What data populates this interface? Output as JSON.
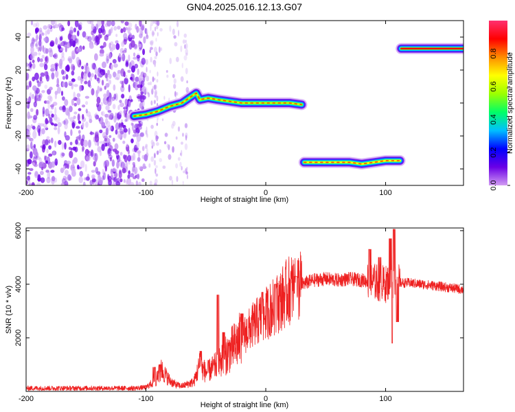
{
  "title": "GN04.2025.016.12.13.G07",
  "chart_data": [
    {
      "type": "heatmap",
      "xlabel": "Height of straight line (km)",
      "ylabel": "Frequency (Hz)",
      "xlim": [
        -200,
        165
      ],
      "ylim": [
        -50,
        50
      ],
      "xticks": [
        -200,
        -100,
        0,
        100
      ],
      "yticks": [
        -40,
        -20,
        0,
        20,
        40
      ],
      "colorbar": {
        "label": "Normalized spectral amplitude",
        "range": [
          0,
          1
        ],
        "ticks": [
          "0.0",
          "0.2",
          "0.4",
          "0.6",
          "0.8"
        ],
        "colormap": [
          "#d29cf2",
          "#6a00e6",
          "#0000ff",
          "#00bfff",
          "#00ff66",
          "#9cff00",
          "#ffff00",
          "#ff8c00",
          "#ff0000",
          "#ff3070"
        ]
      },
      "noise_region": {
        "x_start": -200,
        "x_end": -100,
        "x_faint_end": -65
      },
      "traces": [
        {
          "points": [
            {
              "x": -110,
              "y": -8
            },
            {
              "x": -100,
              "y": -7
            },
            {
              "x": -90,
              "y": -5
            },
            {
              "x": -80,
              "y": -2
            },
            {
              "x": -70,
              "y": 0
            },
            {
              "x": -62,
              "y": 4
            },
            {
              "x": -58,
              "y": 6
            },
            {
              "x": -55,
              "y": 2
            },
            {
              "x": -48,
              "y": 3
            },
            {
              "x": -40,
              "y": 2
            },
            {
              "x": -30,
              "y": 1
            },
            {
              "x": -20,
              "y": 0
            },
            {
              "x": -10,
              "y": 0
            },
            {
              "x": 0,
              "y": 0
            },
            {
              "x": 10,
              "y": 0
            },
            {
              "x": 20,
              "y": 0
            },
            {
              "x": 30,
              "y": -1
            }
          ]
        },
        {
          "points": [
            {
              "x": 32,
              "y": -36
            },
            {
              "x": 50,
              "y": -36
            },
            {
              "x": 70,
              "y": -36
            },
            {
              "x": 80,
              "y": -37
            },
            {
              "x": 90,
              "y": -36
            },
            {
              "x": 100,
              "y": -35
            },
            {
              "x": 112,
              "y": -35
            }
          ]
        },
        {
          "points": [
            {
              "x": 113,
              "y": 33
            },
            {
              "x": 130,
              "y": 33
            },
            {
              "x": 150,
              "y": 33
            },
            {
              "x": 165,
              "y": 33
            }
          ]
        }
      ]
    },
    {
      "type": "line",
      "xlabel": "Height of straight line (km)",
      "ylabel": "SNR (10 * v/v)",
      "xlim": [
        -200,
        165
      ],
      "ylim": [
        0,
        6100
      ],
      "xticks": [
        -200,
        -100,
        0,
        100
      ],
      "yticks": [
        2000,
        4000,
        6000
      ],
      "color": "#ee2020",
      "envelope": [
        {
          "x": -200,
          "y": 120
        },
        {
          "x": -150,
          "y": 120
        },
        {
          "x": -110,
          "y": 120
        },
        {
          "x": -100,
          "y": 150
        },
        {
          "x": -92,
          "y": 400
        },
        {
          "x": -87,
          "y": 800
        },
        {
          "x": -80,
          "y": 400
        },
        {
          "x": -75,
          "y": 250
        },
        {
          "x": -70,
          "y": 200
        },
        {
          "x": -60,
          "y": 350
        },
        {
          "x": -55,
          "y": 1000
        },
        {
          "x": -50,
          "y": 700
        },
        {
          "x": -40,
          "y": 1000
        },
        {
          "x": -30,
          "y": 1500
        },
        {
          "x": -20,
          "y": 2000
        },
        {
          "x": -10,
          "y": 2500
        },
        {
          "x": 0,
          "y": 2900
        },
        {
          "x": 10,
          "y": 3300
        },
        {
          "x": 20,
          "y": 3800
        },
        {
          "x": 30,
          "y": 4000
        },
        {
          "x": 40,
          "y": 4150
        },
        {
          "x": 50,
          "y": 4200
        },
        {
          "x": 60,
          "y": 4150
        },
        {
          "x": 70,
          "y": 4200
        },
        {
          "x": 80,
          "y": 4150
        },
        {
          "x": 90,
          "y": 4100
        },
        {
          "x": 100,
          "y": 4000
        },
        {
          "x": 105,
          "y": 4200
        },
        {
          "x": 110,
          "y": 4050
        },
        {
          "x": 120,
          "y": 4050
        },
        {
          "x": 140,
          "y": 3950
        },
        {
          "x": 165,
          "y": 3800
        }
      ],
      "spikes": [
        {
          "x": -93,
          "y": 900
        },
        {
          "x": -88,
          "y": 1000
        },
        {
          "x": -54,
          "y": 1500
        },
        {
          "x": -40,
          "y": 3600
        },
        {
          "x": -35,
          "y": 2200
        },
        {
          "x": -20,
          "y": 2900
        },
        {
          "x": -3,
          "y": 3700
        },
        {
          "x": 8,
          "y": 4000
        },
        {
          "x": 25,
          "y": 4300
        },
        {
          "x": 87,
          "y": 5300
        },
        {
          "x": 95,
          "y": 5000
        },
        {
          "x": 104,
          "y": 5700
        },
        {
          "x": 106,
          "y": 1800
        },
        {
          "x": 107,
          "y": 6050
        },
        {
          "x": 110,
          "y": 2600
        }
      ]
    }
  ]
}
